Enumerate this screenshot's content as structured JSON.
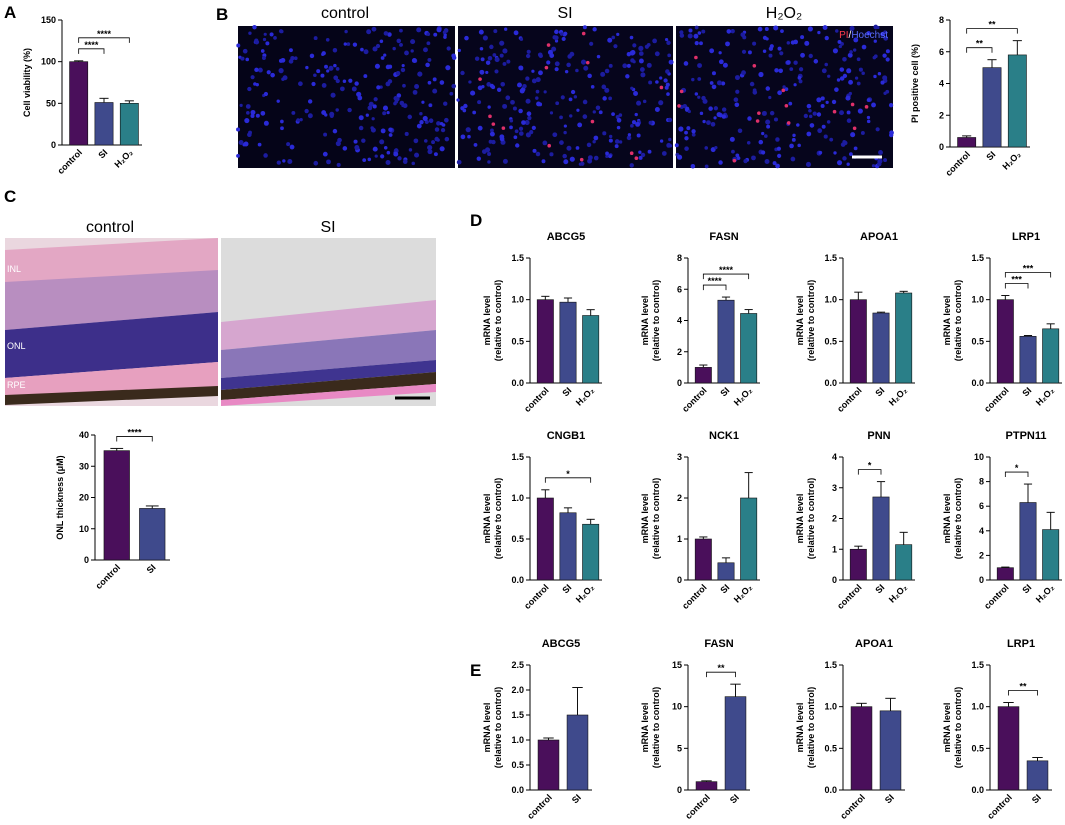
{
  "panels": [
    "A",
    "B",
    "C",
    "D",
    "E"
  ],
  "images": {
    "B": {
      "captions": [
        "control",
        "SI",
        "H₂O₂"
      ],
      "stain": [
        "PI",
        "/",
        "Hoechst"
      ]
    },
    "C": {
      "captions": [
        "control",
        "SI"
      ],
      "layers": [
        "INL",
        "ONL",
        "RPE"
      ]
    }
  },
  "chart_data": [
    {
      "type": "bar",
      "ylabel": "Cell viability (%)",
      "categories": [
        "control",
        "SI",
        "H₂O₂"
      ],
      "colors": [
        "#4a0f5b",
        "#3f4a8c",
        "#2a7f88"
      ],
      "values": [
        100,
        51,
        50
      ],
      "errors": [
        1,
        5,
        3
      ],
      "ylim": [
        0,
        150
      ],
      "yticks": [
        0,
        50,
        100,
        150
      ],
      "annotations": [
        {
          "text": "****",
          "between": [
            "control",
            "SI"
          ]
        },
        {
          "text": "****",
          "between": [
            "control",
            "H₂O₂"
          ]
        }
      ]
    },
    {
      "type": "bar",
      "ylabel": "PI positive cell (%)",
      "categories": [
        "control",
        "SI",
        "H₂O₂"
      ],
      "colors": [
        "#4a0f5b",
        "#3f4a8c",
        "#2a7f88"
      ],
      "values": [
        0.6,
        5.0,
        5.8
      ],
      "errors": [
        0.1,
        0.5,
        0.9
      ],
      "ylim": [
        0,
        8
      ],
      "yticks": [
        0,
        2,
        4,
        6,
        8
      ],
      "annotations": [
        {
          "text": "**",
          "between": [
            "control",
            "SI"
          ]
        },
        {
          "text": "**",
          "between": [
            "control",
            "H₂O₂"
          ]
        }
      ]
    },
    {
      "type": "bar",
      "ylabel": "ONL thickness (μM)",
      "categories": [
        "control",
        "SI"
      ],
      "colors": [
        "#4a0f5b",
        "#3f4a8c"
      ],
      "values": [
        35,
        16.5
      ],
      "errors": [
        0.7,
        0.8
      ],
      "ylim": [
        0,
        40
      ],
      "yticks": [
        0,
        10,
        20,
        30,
        40
      ],
      "annotations": [
        {
          "text": "****",
          "between": [
            "control",
            "SI"
          ]
        }
      ]
    },
    {
      "type": "bar",
      "title": "ABCG5",
      "ylabel": [
        "mRNA level",
        "(relative to control)"
      ],
      "categories": [
        "control",
        "SI",
        "H₂O₂"
      ],
      "colors": [
        "#4a0f5b",
        "#3f4a8c",
        "#2a7f88"
      ],
      "values": [
        1.0,
        0.97,
        0.81
      ],
      "errors": [
        0.04,
        0.05,
        0.07
      ],
      "ylim": [
        0,
        1.5
      ],
      "yticks": [
        {
          "value": 0,
          "label": "0.0"
        },
        0.5,
        {
          "value": 1,
          "label": "1.0"
        },
        1.5
      ],
      "annotations": []
    },
    {
      "type": "bar",
      "title": "FASN",
      "ylabel": [
        "mRNA level",
        "(relative to control)"
      ],
      "categories": [
        "control",
        "SI",
        "H₂O₂"
      ],
      "colors": [
        "#4a0f5b",
        "#3f4a8c",
        "#2a7f88"
      ],
      "values": [
        1.0,
        5.3,
        4.45
      ],
      "errors": [
        0.15,
        0.2,
        0.25
      ],
      "ylim": [
        0,
        8
      ],
      "yticks": [
        0,
        2,
        4,
        6,
        8
      ],
      "annotations": [
        {
          "text": "****",
          "between": [
            "control",
            "SI"
          ]
        },
        {
          "text": "****",
          "between": [
            "control",
            "H₂O₂"
          ]
        }
      ]
    },
    {
      "type": "bar",
      "title": "APOA1",
      "ylabel": [
        "mRNA level",
        "(relative to control)"
      ],
      "categories": [
        "control",
        "SI",
        "H₂O₂"
      ],
      "colors": [
        "#4a0f5b",
        "#3f4a8c",
        "#2a7f88"
      ],
      "values": [
        1.0,
        0.84,
        1.08
      ],
      "errors": [
        0.09,
        0.01,
        0.02
      ],
      "ylim": [
        0,
        1.5
      ],
      "yticks": [
        {
          "value": 0,
          "label": "0.0"
        },
        0.5,
        {
          "value": 1,
          "label": "1.0"
        },
        1.5
      ],
      "annotations": []
    },
    {
      "type": "bar",
      "title": "LRP1",
      "ylabel": [
        "mRNA level",
        "(relative to control)"
      ],
      "categories": [
        "control",
        "SI",
        "H₂O₂"
      ],
      "colors": [
        "#4a0f5b",
        "#3f4a8c",
        "#2a7f88"
      ],
      "values": [
        1.0,
        0.56,
        0.65
      ],
      "errors": [
        0.05,
        0.01,
        0.06
      ],
      "ylim": [
        0,
        1.5
      ],
      "yticks": [
        {
          "value": 0,
          "label": "0.0"
        },
        0.5,
        {
          "value": 1,
          "label": "1.0"
        },
        1.5
      ],
      "annotations": [
        {
          "text": "***",
          "between": [
            "control",
            "SI"
          ]
        },
        {
          "text": "***",
          "between": [
            "control",
            "H₂O₂"
          ]
        }
      ]
    },
    {
      "type": "bar",
      "title": "CNGB1",
      "ylabel": [
        "mRNA level",
        "(relative to control)"
      ],
      "categories": [
        "control",
        "SI",
        "H₂O₂"
      ],
      "colors": [
        "#4a0f5b",
        "#3f4a8c",
        "#2a7f88"
      ],
      "values": [
        1.0,
        0.82,
        0.68
      ],
      "errors": [
        0.1,
        0.06,
        0.06
      ],
      "ylim": [
        0,
        1.5
      ],
      "yticks": [
        {
          "value": 0,
          "label": "0.0"
        },
        0.5,
        {
          "value": 1,
          "label": "1.0"
        },
        1.5
      ],
      "annotations": [
        {
          "text": "*",
          "between": [
            "control",
            "H₂O₂"
          ]
        }
      ]
    },
    {
      "type": "bar",
      "title": "NCK1",
      "ylabel": [
        "mRNA level",
        "(relative to control)"
      ],
      "categories": [
        "control",
        "SI",
        "H₂O₂"
      ],
      "colors": [
        "#4a0f5b",
        "#3f4a8c",
        "#2a7f88"
      ],
      "values": [
        1.0,
        0.42,
        2.0
      ],
      "errors": [
        0.05,
        0.12,
        0.62
      ],
      "ylim": [
        0,
        3
      ],
      "yticks": [
        0,
        1,
        2,
        3
      ],
      "annotations": []
    },
    {
      "type": "bar",
      "title": "PNN",
      "ylabel": [
        "mRNA level",
        "(relative to control)"
      ],
      "categories": [
        "control",
        "SI",
        "H₂O₂"
      ],
      "colors": [
        "#4a0f5b",
        "#3f4a8c",
        "#2a7f88"
      ],
      "values": [
        1.0,
        2.7,
        1.15
      ],
      "errors": [
        0.1,
        0.5,
        0.4
      ],
      "ylim": [
        0,
        4
      ],
      "yticks": [
        0,
        1,
        2,
        3,
        4
      ],
      "annotations": [
        {
          "text": "*",
          "between": [
            "control",
            "SI"
          ]
        }
      ]
    },
    {
      "type": "bar",
      "title": "PTPN11",
      "ylabel": [
        "mRNA level",
        "(relative to control)"
      ],
      "categories": [
        "control",
        "SI",
        "H₂O₂"
      ],
      "colors": [
        "#4a0f5b",
        "#3f4a8c",
        "#2a7f88"
      ],
      "values": [
        1.0,
        6.3,
        4.1
      ],
      "errors": [
        0.05,
        1.5,
        1.4
      ],
      "ylim": [
        0,
        10
      ],
      "yticks": [
        0,
        2,
        4,
        6,
        8,
        10
      ],
      "annotations": [
        {
          "text": "*",
          "between": [
            "control",
            "SI"
          ]
        }
      ]
    },
    {
      "type": "bar",
      "title": "ABCG5",
      "ylabel": [
        "mRNA level",
        "(relative to control)"
      ],
      "categories": [
        "control",
        "SI"
      ],
      "colors": [
        "#4a0f5b",
        "#3f4a8c"
      ],
      "values": [
        1.0,
        1.5
      ],
      "errors": [
        0.04,
        0.55
      ],
      "ylim": [
        0,
        2.5
      ],
      "yticks": [
        {
          "value": 0,
          "label": "0.0"
        },
        0.5,
        {
          "value": 1,
          "label": "1.0"
        },
        1.5,
        {
          "value": 2,
          "label": "2.0"
        },
        2.5
      ],
      "annotations": []
    },
    {
      "type": "bar",
      "title": "FASN",
      "ylabel": [
        "mRNA level",
        "(relative to control)"
      ],
      "categories": [
        "control",
        "SI"
      ],
      "colors": [
        "#4a0f5b",
        "#3f4a8c"
      ],
      "values": [
        1.0,
        11.2
      ],
      "errors": [
        0.1,
        1.5
      ],
      "ylim": [
        0,
        15
      ],
      "yticks": [
        0,
        5,
        10,
        15
      ],
      "annotations": [
        {
          "text": "**",
          "between": [
            "control",
            "SI"
          ]
        }
      ]
    },
    {
      "type": "bar",
      "title": "APOA1",
      "ylabel": [
        "mRNA level",
        "(relative to control)"
      ],
      "categories": [
        "control",
        "SI"
      ],
      "colors": [
        "#4a0f5b",
        "#3f4a8c"
      ],
      "values": [
        1.0,
        0.95
      ],
      "errors": [
        0.04,
        0.15
      ],
      "ylim": [
        0,
        1.5
      ],
      "yticks": [
        {
          "value": 0,
          "label": "0.0"
        },
        0.5,
        {
          "value": 1,
          "label": "1.0"
        },
        1.5
      ],
      "annotations": []
    },
    {
      "type": "bar",
      "title": "LRP1",
      "ylabel": [
        "mRNA level",
        "(relative to control)"
      ],
      "categories": [
        "control",
        "SI"
      ],
      "colors": [
        "#4a0f5b",
        "#3f4a8c"
      ],
      "values": [
        1.0,
        0.35
      ],
      "errors": [
        0.05,
        0.04
      ],
      "ylim": [
        0,
        1.5
      ],
      "yticks": [
        {
          "value": 0,
          "label": "0.0"
        },
        0.5,
        {
          "value": 1,
          "label": "1.0"
        },
        1.5
      ],
      "annotations": [
        {
          "text": "**",
          "between": [
            "control",
            "SI"
          ]
        }
      ]
    }
  ]
}
